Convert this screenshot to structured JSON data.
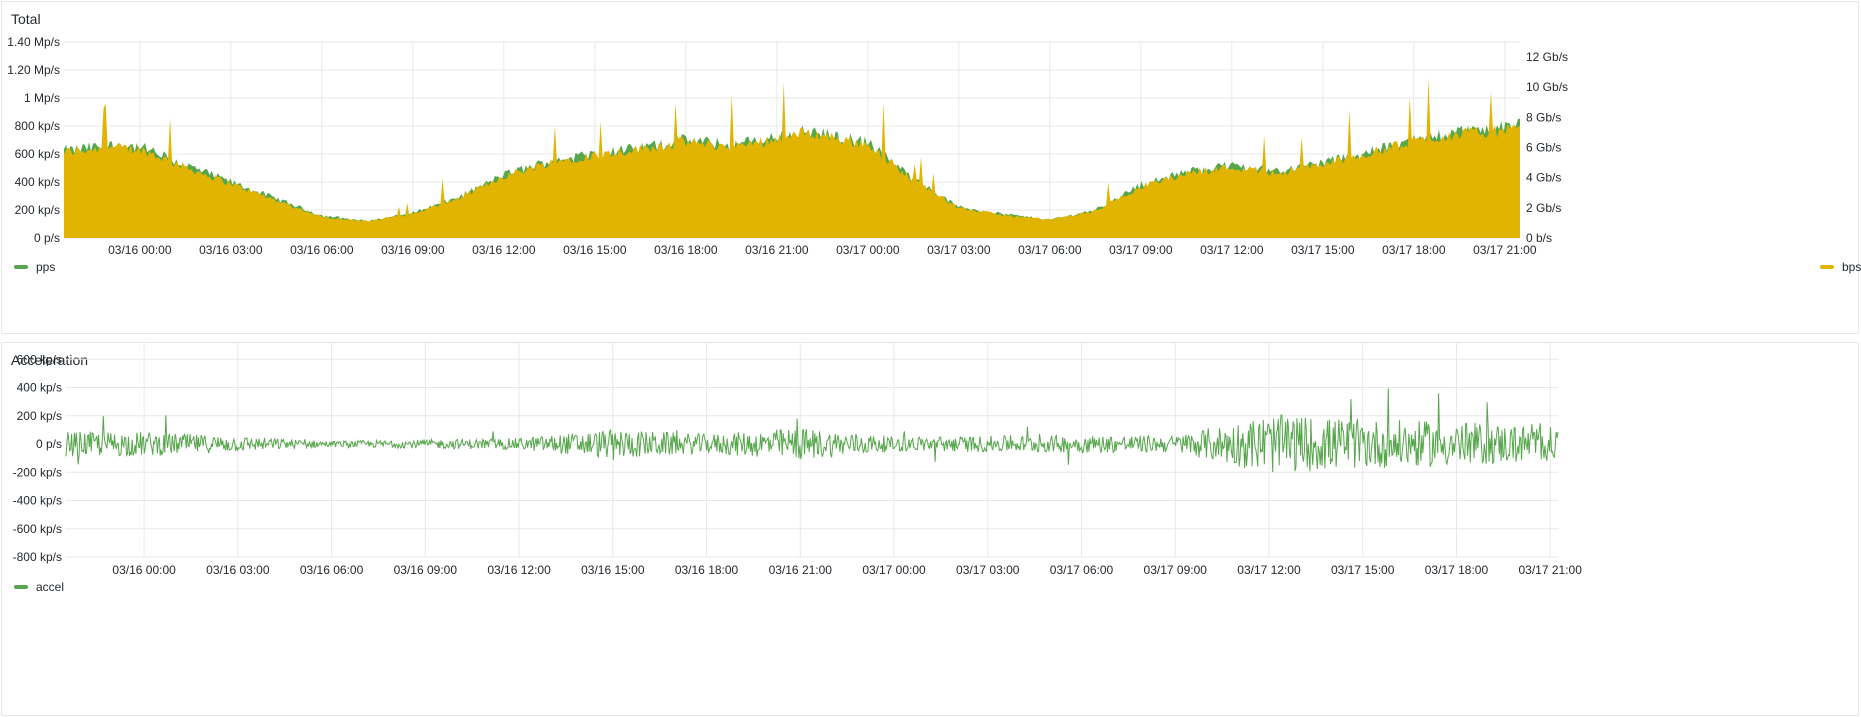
{
  "panels": {
    "total": {
      "title": "Total",
      "legend_left": "pps",
      "legend_right": "bps"
    },
    "accel": {
      "title": "Acceleration",
      "legend": "accel"
    }
  },
  "colors": {
    "pps": "#56a64b",
    "bps": "#e0b400",
    "accel": "#56a64b",
    "grid": "#e8e8e8"
  },
  "chart_data": [
    {
      "type": "area",
      "title": "Total",
      "x_ticks": [
        "03/16 00:00",
        "03/16 03:00",
        "03/16 06:00",
        "03/16 09:00",
        "03/16 12:00",
        "03/16 15:00",
        "03/16 18:00",
        "03/16 21:00",
        "03/17 00:00",
        "03/17 03:00",
        "03/17 06:00",
        "03/17 09:00",
        "03/17 12:00",
        "03/17 15:00",
        "03/17 18:00",
        "03/17 21:00"
      ],
      "x_range": [
        "03/15 21:30",
        "03/17 21:30"
      ],
      "y_left": {
        "unit": "pps",
        "ticks": [
          "0 p/s",
          "200 kp/s",
          "400 kp/s",
          "600 kp/s",
          "800 kp/s",
          "1 Mp/s",
          "1.20 Mp/s",
          "1.40 Mp/s"
        ],
        "ylim": [
          0,
          1400000
        ]
      },
      "y_right": {
        "unit": "bps",
        "ticks": [
          "0 b/s",
          "2 Gb/s",
          "4 Gb/s",
          "6 Gb/s",
          "8 Gb/s",
          "10 Gb/s",
          "12 Gb/s"
        ],
        "ylim": [
          0,
          13000000000
        ]
      },
      "series": [
        {
          "name": "pps",
          "axis": "left",
          "x": [
            "03/15 21:30",
            "03/15 23:00",
            "03/16 00:00",
            "03/16 01:30",
            "03/16 03:00",
            "03/16 04:30",
            "03/16 06:00",
            "03/16 07:30",
            "03/16 09:00",
            "03/16 10:30",
            "03/16 12:00",
            "03/16 13:30",
            "03/16 15:00",
            "03/16 16:30",
            "03/16 18:00",
            "03/16 19:30",
            "03/16 21:00",
            "03/16 22:00",
            "03/17 00:00",
            "03/17 01:30",
            "03/17 03:00",
            "03/17 04:30",
            "03/17 06:00",
            "03/17 07:30",
            "03/17 09:00",
            "03/17 10:30",
            "03/17 12:00",
            "03/17 13:30",
            "03/17 15:00",
            "03/17 16:30",
            "03/17 18:00",
            "03/17 19:30",
            "03/17 21:30"
          ],
          "values": [
            620000,
            660000,
            650000,
            520000,
            400000,
            280000,
            160000,
            120000,
            180000,
            290000,
            450000,
            550000,
            600000,
            640000,
            700000,
            660000,
            720000,
            760000,
            680000,
            420000,
            220000,
            170000,
            130000,
            200000,
            380000,
            470000,
            520000,
            480000,
            540000,
            610000,
            700000,
            760000,
            800000
          ]
        },
        {
          "name": "bps",
          "axis": "right",
          "x": [
            "03/15 21:30",
            "03/15 23:00",
            "03/16 00:00",
            "03/16 01:30",
            "03/16 03:00",
            "03/16 04:30",
            "03/16 06:00",
            "03/16 07:30",
            "03/16 09:00",
            "03/16 10:30",
            "03/16 12:00",
            "03/16 13:30",
            "03/16 15:00",
            "03/16 16:30",
            "03/16 18:00",
            "03/16 19:30",
            "03/16 21:00",
            "03/16 22:00",
            "03/17 00:00",
            "03/17 01:30",
            "03/17 03:00",
            "03/17 04:30",
            "03/17 06:00",
            "03/17 07:30",
            "03/17 09:00",
            "03/17 10:30",
            "03/17 12:00",
            "03/17 13:30",
            "03/17 15:00",
            "03/17 16:30",
            "03/17 18:00",
            "03/17 19:30",
            "03/17 21:30"
          ],
          "values": [
            5700000000,
            6000000000,
            5900000000,
            4700000000,
            3600000000,
            2500000000,
            1400000000,
            1100000000,
            1600000000,
            2600000000,
            4100000000,
            5000000000,
            5500000000,
            5900000000,
            6400000000,
            6000000000,
            6600000000,
            7000000000,
            6200000000,
            3800000000,
            2000000000,
            1500000000,
            1200000000,
            1800000000,
            3400000000,
            4300000000,
            4700000000,
            4300000000,
            4900000000,
            5600000000,
            6400000000,
            6900000000,
            7200000000
          ]
        }
      ]
    },
    {
      "type": "line",
      "title": "Acceleration",
      "x_ticks": [
        "03/16 00:00",
        "03/16 03:00",
        "03/16 06:00",
        "03/16 09:00",
        "03/16 12:00",
        "03/16 15:00",
        "03/16 18:00",
        "03/16 21:00",
        "03/17 00:00",
        "03/17 03:00",
        "03/17 06:00",
        "03/17 09:00",
        "03/17 12:00",
        "03/17 15:00",
        "03/17 18:00",
        "03/17 21:00"
      ],
      "y_ticks": [
        "-800 kp/s",
        "-600 kp/s",
        "-400 kp/s",
        "-200 kp/s",
        "0 p/s",
        "200 kp/s",
        "400 kp/s",
        "600 kp/s",
        "800 kp/s"
      ],
      "ylim": [
        -800000,
        800000
      ],
      "series": [
        {
          "name": "accel",
          "x": [
            "03/16 00:00",
            "03/16 06:00",
            "03/16 12:00",
            "03/16 15:00",
            "03/16 18:00",
            "03/16 21:00",
            "03/17 00:00",
            "03/17 06:00",
            "03/17 09:00",
            "03/17 12:00",
            "03/17 15:00",
            "03/17 18:00",
            "03/17 21:00"
          ],
          "amplitude": [
            250000,
            60000,
            120000,
            300000,
            200000,
            330000,
            150000,
            180000,
            170000,
            600000,
            500000,
            450000,
            350000
          ]
        }
      ]
    }
  ]
}
